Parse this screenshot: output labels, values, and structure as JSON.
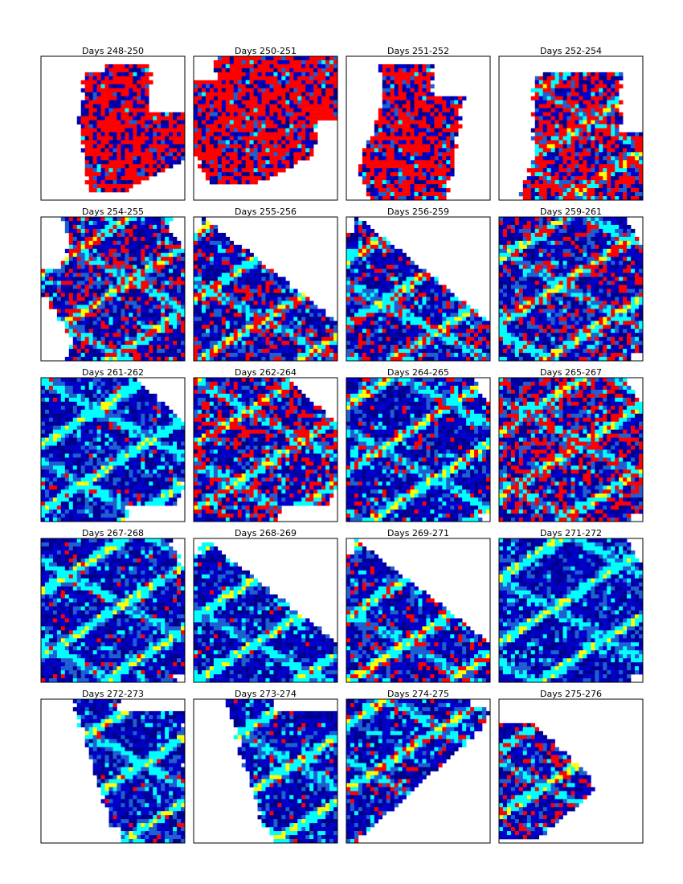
{
  "chart_data": {
    "type": "heatmap",
    "colors": {
      "background": "#ffffff",
      "levels": [
        "#00008f",
        "#0000c8",
        "#1f5fd0",
        "#00ffff",
        "#ffff00",
        "#ff0000"
      ]
    },
    "panels": [
      {
        "title": "Days 248-250",
        "coverage": "upper-center",
        "hot_fraction": 0.62,
        "streaks": "none"
      },
      {
        "title": "Days 250-251",
        "coverage": "upper",
        "hot_fraction": 0.58,
        "streaks": "none"
      },
      {
        "title": "Days 251-252",
        "coverage": "center",
        "hot_fraction": 0.55,
        "streaks": "none"
      },
      {
        "title": "Days 252-254",
        "coverage": "lower-right",
        "hot_fraction": 0.45,
        "streaks": "diagonal"
      },
      {
        "title": "Days 254-255",
        "coverage": "full-left-notch",
        "hot_fraction": 0.22,
        "streaks": "diagonal"
      },
      {
        "title": "Days 255-256",
        "coverage": "lower-left-triangle",
        "hot_fraction": 0.18,
        "streaks": "diagonal"
      },
      {
        "title": "Days 256-259",
        "coverage": "lower-left-triangle",
        "hot_fraction": 0.16,
        "streaks": "diagonal"
      },
      {
        "title": "Days 259-261",
        "coverage": "full",
        "hot_fraction": 0.18,
        "streaks": "diagonal"
      },
      {
        "title": "Days 261-262",
        "coverage": "left-tapered",
        "hot_fraction": 0.04,
        "streaks": "diagonal"
      },
      {
        "title": "Days 262-264",
        "coverage": "left-tapered",
        "hot_fraction": 0.25,
        "streaks": "diagonal"
      },
      {
        "title": "Days 264-265",
        "coverage": "full",
        "hot_fraction": 0.06,
        "streaks": "diagonal"
      },
      {
        "title": "Days 265-267",
        "coverage": "full",
        "hot_fraction": 0.28,
        "streaks": "diagonal"
      },
      {
        "title": "Days 267-268",
        "coverage": "full",
        "hot_fraction": 0.03,
        "streaks": "diagonal"
      },
      {
        "title": "Days 268-269",
        "coverage": "lower-left-triangle",
        "hot_fraction": 0.03,
        "streaks": "diagonal"
      },
      {
        "title": "Days 269-271",
        "coverage": "lower-left-triangle",
        "hot_fraction": 0.12,
        "streaks": "diagonal"
      },
      {
        "title": "Days 271-272",
        "coverage": "full",
        "hot_fraction": 0.0,
        "streaks": "diagonal"
      },
      {
        "title": "Days 272-273",
        "coverage": "right-band",
        "hot_fraction": 0.02,
        "streaks": "diagonal"
      },
      {
        "title": "Days 273-274",
        "coverage": "right-band",
        "hot_fraction": 0.03,
        "streaks": "diagonal"
      },
      {
        "title": "Days 274-275",
        "coverage": "upper-left-band",
        "hot_fraction": 0.06,
        "streaks": "diagonal"
      },
      {
        "title": "Days 275-276",
        "coverage": "left-diamond",
        "hot_fraction": 0.15,
        "streaks": "diagonal"
      }
    ]
  }
}
